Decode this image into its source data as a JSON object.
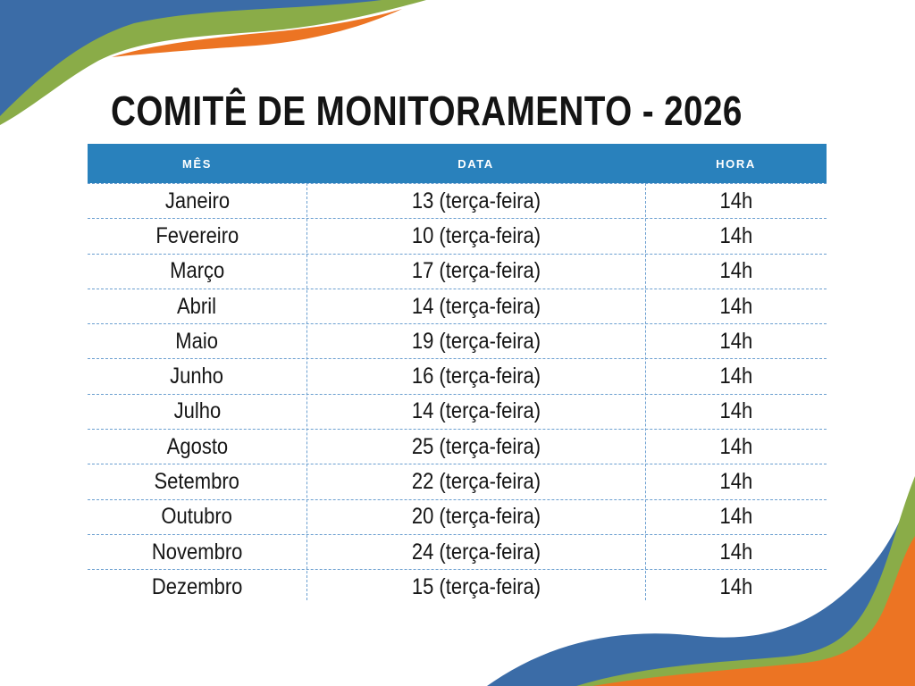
{
  "slide": {
    "title": "COMITÊ DE MONITORAMENTO - 2026"
  },
  "table": {
    "columns": [
      "MÊS",
      "DATA",
      "HORA"
    ],
    "rows": [
      {
        "month": "Janeiro",
        "date": "13 (terça-feira)",
        "time": "14h"
      },
      {
        "month": "Fevereiro",
        "date": "10 (terça-feira)",
        "time": "14h"
      },
      {
        "month": "Março",
        "date": "17 (terça-feira)",
        "time": "14h"
      },
      {
        "month": "Abril",
        "date": "14 (terça-feira)",
        "time": "14h"
      },
      {
        "month": "Maio",
        "date": "19 (terça-feira)",
        "time": "14h"
      },
      {
        "month": "Junho",
        "date": "16 (terça-feira)",
        "time": "14h"
      },
      {
        "month": "Julho",
        "date": "14 (terça-feira)",
        "time": "14h"
      },
      {
        "month": "Agosto",
        "date": "25 (terça-feira)",
        "time": "14h"
      },
      {
        "month": "Setembro",
        "date": "22 (terça-feira)",
        "time": "14h"
      },
      {
        "month": "Outubro",
        "date": "20 (terça-feira)",
        "time": "14h"
      },
      {
        "month": "Novembro",
        "date": "24 (terça-feira)",
        "time": "14h"
      },
      {
        "month": "Dezembro",
        "date": "15 (terça-feira)",
        "time": "14h"
      }
    ]
  },
  "colors": {
    "header_bg": "#2981bc",
    "header_text": "#ffffff",
    "divider": "#6b9fd0",
    "wave_blue": "#3b6ca7",
    "wave_green": "#8aac48",
    "wave_orange": "#ec7423",
    "title_text": "#141414"
  }
}
